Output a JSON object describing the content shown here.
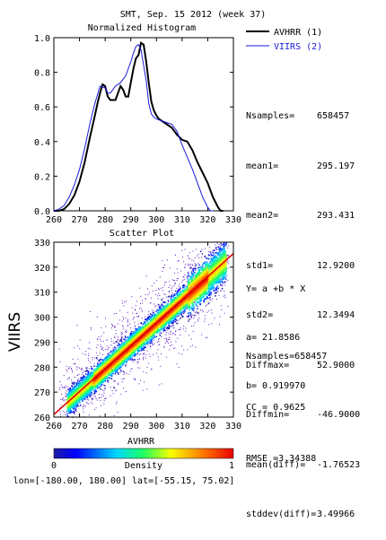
{
  "header": {
    "title": "SMT,  Sep. 15 2012 (week 37)"
  },
  "legend": [
    {
      "label": "AVHRR (1)",
      "color": "#000000"
    },
    {
      "label": "VIIRS (2)",
      "color": "#1a1adb"
    }
  ],
  "stats": [
    {
      "key": "Nsamples=",
      "value": "658457"
    },
    {
      "key": "mean1=",
      "value": "295.197"
    },
    {
      "key": "mean2=",
      "value": "293.431"
    },
    {
      "key": "std1=",
      "value": "12.9200"
    },
    {
      "key": "std2=",
      "value": "12.3494"
    },
    {
      "key": "Diffmax=",
      "value": "52.9000"
    },
    {
      "key": "Diffmin=",
      "value": "-46.9000"
    },
    {
      "key": "mean(diff)=",
      "value": "-1.76523"
    },
    {
      "key": "stddev(diff)=",
      "value": "3.49966"
    }
  ],
  "fit": {
    "equation": "Y= a +b * X",
    "a": "a= 21.8586",
    "b": "b= 0.919970",
    "nsamples": "Nsamples=658457",
    "cc": "CC = 0.9625",
    "rmse": "RMSE =3.34388"
  },
  "colorbar": {
    "label": "Density",
    "min": "0",
    "max": "1"
  },
  "footer": {
    "region": "lon=[-180.00, 180.00] lat=[-55.15, 75.02]"
  },
  "chart_data": [
    {
      "type": "line",
      "title": "Normalized Histogram",
      "xlabel": "",
      "ylabel": "",
      "xlim": [
        260,
        330
      ],
      "ylim": [
        0,
        1.0
      ],
      "xticks": [
        "260",
        "270",
        "280",
        "290",
        "300",
        "310",
        "320",
        "330"
      ],
      "yticks": [
        "0.0",
        "0.2",
        "0.4",
        "0.6",
        "0.8",
        "1.0"
      ],
      "series": [
        {
          "name": "AVHRR (1)",
          "color": "#000000",
          "x": [
            260,
            262,
            264,
            266,
            268,
            270,
            272,
            274,
            276,
            277,
            278,
            279,
            280,
            281,
            282,
            283,
            284,
            285,
            286,
            287,
            288,
            289,
            290,
            291,
            292,
            293,
            294,
            295,
            296,
            297,
            298,
            299,
            300,
            301,
            302,
            304,
            306,
            308,
            310,
            312,
            314,
            316,
            318,
            320,
            322,
            324,
            325,
            326
          ],
          "y": [
            0.0,
            0.0,
            0.01,
            0.04,
            0.09,
            0.17,
            0.28,
            0.42,
            0.55,
            0.62,
            0.68,
            0.73,
            0.72,
            0.66,
            0.64,
            0.64,
            0.64,
            0.68,
            0.72,
            0.7,
            0.66,
            0.66,
            0.74,
            0.82,
            0.88,
            0.9,
            0.97,
            0.96,
            0.86,
            0.74,
            0.63,
            0.58,
            0.55,
            0.53,
            0.52,
            0.5,
            0.48,
            0.44,
            0.41,
            0.4,
            0.35,
            0.28,
            0.22,
            0.16,
            0.08,
            0.02,
            0.0,
            0.0
          ]
        },
        {
          "name": "VIIRS (2)",
          "color": "#1a1adb",
          "x": [
            260,
            262,
            264,
            266,
            268,
            270,
            272,
            274,
            276,
            278,
            280,
            281,
            282,
            283,
            284,
            286,
            288,
            290,
            291,
            292,
            293,
            294,
            295,
            296,
            297,
            298,
            299,
            300,
            302,
            304,
            306,
            308,
            310,
            312,
            314,
            316,
            318,
            320,
            321,
            322
          ],
          "y": [
            0.0,
            0.01,
            0.03,
            0.08,
            0.15,
            0.24,
            0.36,
            0.5,
            0.62,
            0.72,
            0.71,
            0.68,
            0.68,
            0.7,
            0.72,
            0.74,
            0.78,
            0.86,
            0.91,
            0.95,
            0.96,
            0.93,
            0.84,
            0.75,
            0.62,
            0.56,
            0.54,
            0.53,
            0.52,
            0.51,
            0.5,
            0.46,
            0.38,
            0.31,
            0.24,
            0.16,
            0.08,
            0.02,
            0.0,
            0.0
          ]
        }
      ]
    },
    {
      "type": "heatmap",
      "title": "Scatter Plot",
      "xlabel": "AVHRR",
      "ylabel": "VIIRS",
      "xlim": [
        260,
        330
      ],
      "ylim": [
        260,
        330
      ],
      "xticks": [
        "260",
        "270",
        "280",
        "290",
        "300",
        "310",
        "320",
        "330"
      ],
      "yticks": [
        "260",
        "270",
        "280",
        "290",
        "300",
        "310",
        "320",
        "330"
      ],
      "fit_line": {
        "a": 21.8586,
        "b": 0.91997
      },
      "colorbar_range": [
        0,
        1
      ]
    }
  ]
}
